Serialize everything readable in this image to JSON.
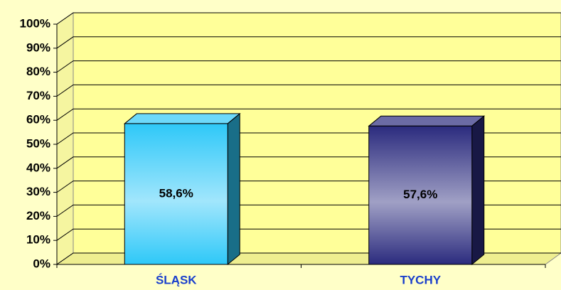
{
  "chart_data": {
    "type": "bar",
    "categories": [
      "ŚLĄSK",
      "TYCHY"
    ],
    "values": [
      58.6,
      57.6
    ],
    "value_labels": [
      "58,6%",
      "57,6%"
    ],
    "colors": [
      "#2ec8f8",
      "#2b2b7e"
    ],
    "ylim": [
      0,
      100
    ],
    "yticks": [
      {
        "value": 0,
        "label": "0%"
      },
      {
        "value": 10,
        "label": "10%"
      },
      {
        "value": 20,
        "label": "20%"
      },
      {
        "value": 30,
        "label": "30%"
      },
      {
        "value": 40,
        "label": "40%"
      },
      {
        "value": 50,
        "label": "50%"
      },
      {
        "value": 60,
        "label": "60%"
      },
      {
        "value": 70,
        "label": "70%"
      },
      {
        "value": 80,
        "label": "80%"
      },
      {
        "value": 90,
        "label": "90%"
      },
      {
        "value": 100,
        "label": "100%"
      }
    ],
    "grid": true
  }
}
